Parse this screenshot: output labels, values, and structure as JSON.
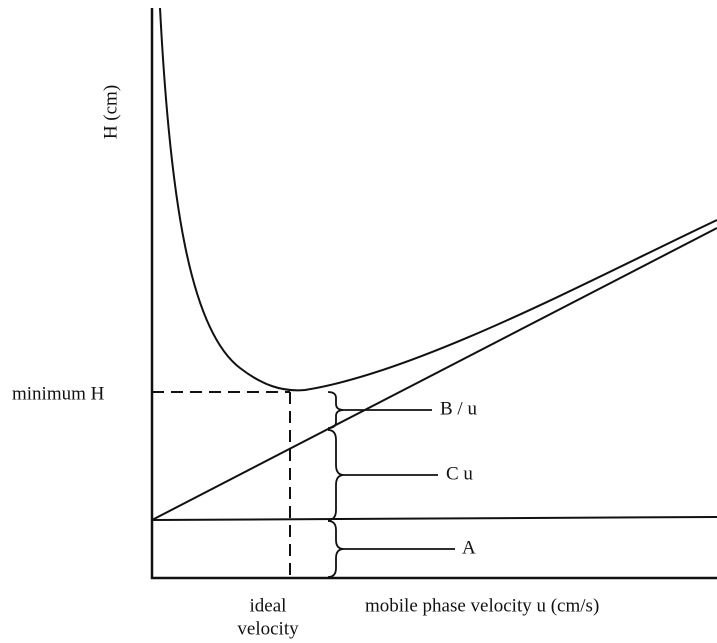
{
  "axes": {
    "y_label": "H (cm)",
    "x_label": "mobile phase velocity u (cm/s)"
  },
  "annotations": {
    "minimum": "minimum H",
    "ideal": [
      "ideal",
      "velocity"
    ]
  },
  "terms": [
    "B / u",
    "C u",
    "A"
  ]
}
